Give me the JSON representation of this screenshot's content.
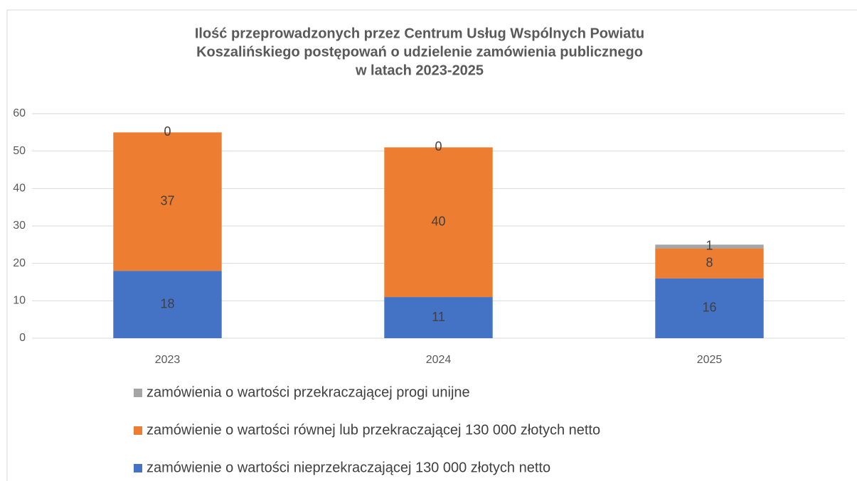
{
  "chart_data": {
    "type": "stacked_bar",
    "title": [
      "Ilość przeprowadzonych przez Centrum Usług Wspólnych Powiatu",
      "Koszalińskiego postępowań o udzielenie zamówienia publicznego",
      "w latach 2023-2025"
    ],
    "categories": [
      "2023",
      "2024",
      "2025"
    ],
    "series": [
      {
        "name": "zamówienie o wartości nieprzekraczającej 130 000 złotych netto",
        "color": "#4472c4",
        "values": [
          18,
          11,
          16
        ]
      },
      {
        "name": "zamówienie o wartości równej lub przekraczającej 130 000 złotych netto",
        "color": "#ed7d31",
        "values": [
          37,
          40,
          8
        ]
      },
      {
        "name": "zamówienia o wartości przekraczającej progi unijne",
        "color": "#a5a5a5",
        "values": [
          0,
          0,
          1
        ]
      }
    ],
    "ylim": [
      0,
      60
    ],
    "yticks": [
      0,
      10,
      20,
      30,
      40,
      50,
      60
    ],
    "grid": true,
    "legend": "bottom"
  }
}
